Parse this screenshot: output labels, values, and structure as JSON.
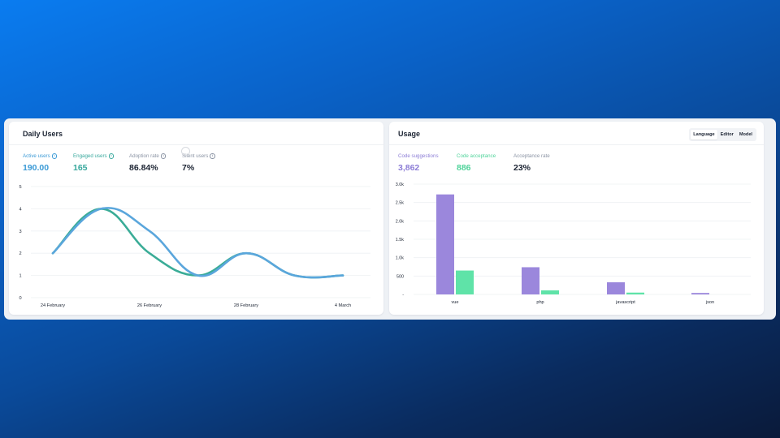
{
  "daily_users": {
    "title": "Daily Users",
    "metrics": [
      {
        "label": "Active users",
        "value": "190.00",
        "color": "#3b9ad6"
      },
      {
        "label": "Engaged users",
        "value": "165",
        "color": "#38a89d"
      },
      {
        "label": "Adoption rate",
        "value": "86.84%",
        "color": "#1c2433"
      },
      {
        "label": "Silent users",
        "value": "7%",
        "color": "#1c2433"
      }
    ],
    "chart_data": {
      "type": "line",
      "yticks": [
        "0",
        "1",
        "2",
        "3",
        "4",
        "5"
      ],
      "ylim": [
        0,
        5
      ],
      "x_tick_labels": [
        "24 February",
        "26 February",
        "28 February",
        "4 March"
      ],
      "x_tick_positions": [
        0,
        2,
        4,
        6
      ],
      "series": [
        {
          "color": "#5aa6dc",
          "values": [
            2,
            4,
            3,
            1,
            2,
            1,
            1
          ]
        },
        {
          "color": "#3aac97",
          "values": [
            2,
            4,
            2,
            1,
            2,
            1,
            1
          ]
        }
      ]
    }
  },
  "usage": {
    "title": "Usage",
    "tabs": [
      "Language",
      "Editor",
      "Model"
    ],
    "active_tab": "Language",
    "metrics": [
      {
        "label": "Code suggestions",
        "value": "3,862",
        "color": "#8c7dd6"
      },
      {
        "label": "Code acceptance",
        "value": "886",
        "color": "#4fd39a"
      },
      {
        "label": "Acceptance rate",
        "value": "23%",
        "color": "#1c2433"
      }
    ],
    "chart_data": {
      "type": "bar",
      "categories": [
        "vue",
        "php",
        "javascript",
        "json"
      ],
      "yticks": [
        "3.0k",
        "2.5k",
        "2.0k",
        "1.5k",
        "1.0k",
        "500",
        "-"
      ],
      "ylim": [
        0,
        3000
      ],
      "series": [
        {
          "name": "Code suggestions",
          "color": "#9b87dc",
          "values": [
            2720,
            740,
            330,
            40
          ]
        },
        {
          "name": "Code acceptance",
          "color": "#5fe3a8",
          "values": [
            650,
            110,
            50,
            0
          ]
        }
      ]
    }
  }
}
